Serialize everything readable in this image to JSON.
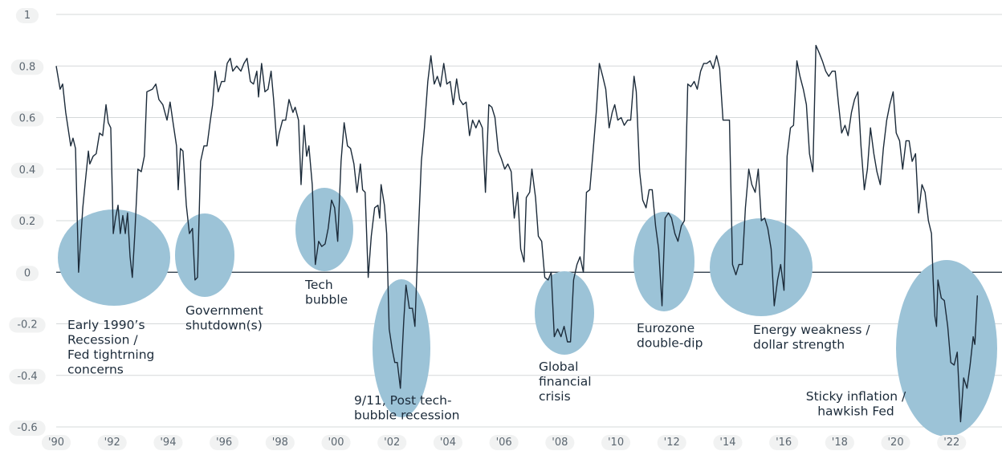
{
  "chart_data": {
    "type": "line",
    "xlim": [
      1990,
      2023.8
    ],
    "ylim": [
      -0.6,
      1
    ],
    "yticks": [
      1,
      0.8,
      0.6,
      0.4,
      0.2,
      0,
      -0.2,
      -0.4,
      -0.6
    ],
    "xticks": [
      {
        "value": 1990,
        "label": "'90"
      },
      {
        "value": 1992,
        "label": "'92"
      },
      {
        "value": 1994,
        "label": "'94"
      },
      {
        "value": 1996,
        "label": "'96"
      },
      {
        "value": 1998,
        "label": "'98"
      },
      {
        "value": 2000,
        "label": "'00"
      },
      {
        "value": 2002,
        "label": "'02"
      },
      {
        "value": 2004,
        "label": "'04"
      },
      {
        "value": 2006,
        "label": "'06"
      },
      {
        "value": 2008,
        "label": "'08"
      },
      {
        "value": 2010,
        "label": "'10"
      },
      {
        "value": 2012,
        "label": "'12"
      },
      {
        "value": 2014,
        "label": "'14"
      },
      {
        "value": 2016,
        "label": "'16"
      },
      {
        "value": 2018,
        "label": "'18"
      },
      {
        "value": 2020,
        "label": "'20"
      },
      {
        "value": 2022,
        "label": "'22"
      }
    ],
    "grid": true,
    "annotations": [
      [
        "Early 1990’s",
        "Recession /",
        "Fed tightrning",
        "concerns"
      ],
      [
        "Government",
        "shutdown(s)"
      ],
      [
        "Tech",
        "bubble"
      ],
      [
        "9/11, Post tech-",
        "bubble recession"
      ],
      [
        "Global",
        "financial",
        "crisis"
      ],
      [
        "Eurozone",
        "double-dip"
      ],
      [
        "Energy weakness /",
        "dollar strength"
      ],
      [
        "Sticky inflation /",
        "hawkish Fed"
      ]
    ],
    "x": [
      1990.0,
      1990.14,
      1990.23,
      1990.34,
      1990.52,
      1990.6,
      1990.69,
      1990.8,
      1990.95,
      1991.03,
      1991.15,
      1991.2,
      1991.32,
      1991.43,
      1991.55,
      1991.66,
      1991.78,
      1991.86,
      1991.95,
      1992.04,
      1992.12,
      1992.21,
      1992.29,
      1992.38,
      1992.47,
      1992.55,
      1992.64,
      1992.72,
      1992.81,
      1992.92,
      1993.04,
      1993.15,
      1993.24,
      1993.44,
      1993.56,
      1993.67,
      1993.81,
      1993.96,
      1994.07,
      1994.19,
      1994.3,
      1994.36,
      1994.44,
      1994.53,
      1994.65,
      1994.76,
      1994.87,
      1994.96,
      1995.05,
      1995.16,
      1995.28,
      1995.39,
      1995.51,
      1995.59,
      1995.68,
      1995.79,
      1995.91,
      1996.02,
      1996.11,
      1996.22,
      1996.31,
      1996.45,
      1996.6,
      1996.71,
      1996.82,
      1996.94,
      1997.05,
      1997.17,
      1997.23,
      1997.34,
      1997.46,
      1997.57,
      1997.68,
      1997.77,
      1997.89,
      1997.97,
      1998.09,
      1998.2,
      1998.32,
      1998.46,
      1998.54,
      1998.66,
      1998.75,
      1998.86,
      1998.95,
      1999.03,
      1999.15,
      1999.26,
      1999.38,
      1999.49,
      1999.61,
      1999.72,
      1999.84,
      1999.95,
      2000.06,
      2000.18,
      2000.29,
      2000.41,
      2000.52,
      2000.64,
      2000.75,
      2000.87,
      2000.95,
      2001.04,
      2001.15,
      2001.26,
      2001.38,
      2001.5,
      2001.56,
      2001.61,
      2001.73,
      2001.81,
      2001.9,
      2002.01,
      2002.1,
      2002.19,
      2002.3,
      2002.42,
      2002.5,
      2002.62,
      2002.73,
      2002.82,
      2002.93,
      2003.05,
      2003.16,
      2003.28,
      2003.39,
      2003.51,
      2003.62,
      2003.73,
      2003.85,
      2003.96,
      2004.08,
      2004.19,
      2004.31,
      2004.42,
      2004.54,
      2004.65,
      2004.77,
      2004.88,
      2005.0,
      2005.11,
      2005.23,
      2005.34,
      2005.46,
      2005.57,
      2005.68,
      2005.8,
      2005.91,
      2006.03,
      2006.14,
      2006.26,
      2006.37,
      2006.49,
      2006.6,
      2006.72,
      2006.8,
      2006.92,
      2007.0,
      2007.13,
      2007.23,
      2007.35,
      2007.46,
      2007.58,
      2007.69,
      2007.8,
      2007.92,
      2008.04,
      2008.15,
      2008.27,
      2008.38,
      2008.49,
      2008.61,
      2008.72,
      2008.84,
      2008.95,
      2009.07,
      2009.18,
      2009.3,
      2009.41,
      2009.53,
      2009.64,
      2009.76,
      2009.87,
      2009.96,
      2010.07,
      2010.19,
      2010.3,
      2010.42,
      2010.53,
      2010.65,
      2010.73,
      2010.85,
      2010.96,
      2011.08,
      2011.19,
      2011.3,
      2011.42,
      2011.53,
      2011.65,
      2011.76,
      2011.88,
      2011.99,
      2012.11,
      2012.22,
      2012.34,
      2012.45,
      2012.57,
      2012.68,
      2012.8,
      2012.91,
      2013.03,
      2013.14,
      2013.25,
      2013.37,
      2013.48,
      2013.6,
      2013.71,
      2013.83,
      2013.94,
      2014.06,
      2014.17,
      2014.29,
      2014.4,
      2014.52,
      2014.63,
      2014.75,
      2014.86,
      2014.98,
      2015.09,
      2015.2,
      2015.32,
      2015.43,
      2015.55,
      2015.66,
      2015.78,
      2015.89,
      2016.01,
      2016.12,
      2016.24,
      2016.35,
      2016.47,
      2016.58,
      2016.7,
      2016.81,
      2016.92,
      2017.04,
      2017.15,
      2017.27,
      2017.38,
      2017.5,
      2017.61,
      2017.73,
      2017.84,
      2017.96,
      2018.07,
      2018.19,
      2018.3,
      2018.42,
      2018.53,
      2018.65,
      2018.76,
      2018.88,
      2018.99,
      2019.1,
      2019.22,
      2019.33,
      2019.45,
      2019.56,
      2019.68,
      2019.79,
      2019.91,
      2020.02,
      2020.14,
      2020.25,
      2020.37,
      2020.48,
      2020.59,
      2020.71,
      2020.82,
      2020.94,
      2021.05,
      2021.17,
      2021.28,
      2021.34,
      2021.4,
      2021.46,
      2021.51,
      2021.63,
      2021.74,
      2021.86,
      2021.97,
      2022.09,
      2022.2,
      2022.32,
      2022.43,
      2022.55,
      2022.66,
      2022.77,
      2022.83,
      2022.92
    ],
    "series": [
      {
        "color": "#1c2b3a",
        "values": [
          0.8,
          0.71,
          0.73,
          0.62,
          0.49,
          0.52,
          0.48,
          0.0,
          0.25,
          0.34,
          0.47,
          0.42,
          0.45,
          0.46,
          0.54,
          0.53,
          0.65,
          0.58,
          0.56,
          0.15,
          0.21,
          0.26,
          0.15,
          0.22,
          0.15,
          0.23,
          0.06,
          -0.02,
          0.15,
          0.4,
          0.39,
          0.45,
          0.7,
          0.71,
          0.73,
          0.67,
          0.65,
          0.59,
          0.66,
          0.57,
          0.49,
          0.32,
          0.48,
          0.47,
          0.26,
          0.15,
          0.17,
          -0.03,
          -0.02,
          0.43,
          0.49,
          0.49,
          0.59,
          0.65,
          0.78,
          0.7,
          0.74,
          0.74,
          0.81,
          0.83,
          0.78,
          0.8,
          0.78,
          0.81,
          0.83,
          0.74,
          0.73,
          0.78,
          0.68,
          0.81,
          0.7,
          0.71,
          0.78,
          0.67,
          0.49,
          0.54,
          0.59,
          0.59,
          0.67,
          0.62,
          0.64,
          0.59,
          0.34,
          0.57,
          0.45,
          0.49,
          0.34,
          0.03,
          0.12,
          0.1,
          0.11,
          0.17,
          0.28,
          0.25,
          0.12,
          0.43,
          0.58,
          0.49,
          0.48,
          0.42,
          0.31,
          0.42,
          0.32,
          0.31,
          -0.02,
          0.14,
          0.25,
          0.26,
          0.21,
          0.34,
          0.26,
          0.15,
          -0.22,
          -0.3,
          -0.35,
          -0.35,
          -0.45,
          -0.19,
          -0.05,
          -0.14,
          -0.14,
          -0.21,
          0.12,
          0.43,
          0.56,
          0.74,
          0.84,
          0.73,
          0.76,
          0.72,
          0.81,
          0.73,
          0.74,
          0.65,
          0.75,
          0.67,
          0.65,
          0.66,
          0.53,
          0.59,
          0.56,
          0.59,
          0.56,
          0.31,
          0.65,
          0.64,
          0.6,
          0.47,
          0.44,
          0.4,
          0.42,
          0.39,
          0.21,
          0.31,
          0.09,
          0.04,
          0.29,
          0.31,
          0.4,
          0.29,
          0.14,
          0.12,
          -0.02,
          -0.03,
          0.0,
          -0.25,
          -0.22,
          -0.25,
          -0.21,
          -0.27,
          -0.27,
          -0.03,
          0.03,
          0.06,
          0.0,
          0.31,
          0.32,
          0.46,
          0.62,
          0.81,
          0.76,
          0.71,
          0.56,
          0.62,
          0.65,
          0.59,
          0.6,
          0.57,
          0.59,
          0.59,
          0.76,
          0.7,
          0.39,
          0.28,
          0.25,
          0.32,
          0.32,
          0.18,
          0.09,
          -0.13,
          0.21,
          0.23,
          0.21,
          0.15,
          0.12,
          0.18,
          0.2,
          0.73,
          0.72,
          0.74,
          0.71,
          0.78,
          0.81,
          0.81,
          0.82,
          0.79,
          0.84,
          0.79,
          0.59,
          0.59,
          0.59,
          0.03,
          -0.01,
          0.03,
          0.03,
          0.25,
          0.4,
          0.34,
          0.31,
          0.4,
          0.2,
          0.21,
          0.17,
          0.09,
          -0.13,
          -0.03,
          0.03,
          -0.07,
          0.45,
          0.56,
          0.57,
          0.82,
          0.76,
          0.71,
          0.65,
          0.46,
          0.39,
          0.88,
          0.85,
          0.82,
          0.78,
          0.76,
          0.78,
          0.78,
          0.65,
          0.54,
          0.57,
          0.53,
          0.62,
          0.67,
          0.7,
          0.49,
          0.32,
          0.4,
          0.56,
          0.46,
          0.39,
          0.34,
          0.48,
          0.59,
          0.65,
          0.7,
          0.54,
          0.51,
          0.4,
          0.51,
          0.51,
          0.43,
          0.46,
          0.23,
          0.34,
          0.31,
          0.2,
          0.15,
          -0.03,
          -0.17,
          -0.21,
          -0.03,
          -0.1,
          -0.11,
          -0.21,
          -0.35,
          -0.36,
          -0.31,
          -0.58,
          -0.41,
          -0.45,
          -0.36,
          -0.25,
          -0.28,
          -0.09
        ]
      }
    ]
  }
}
